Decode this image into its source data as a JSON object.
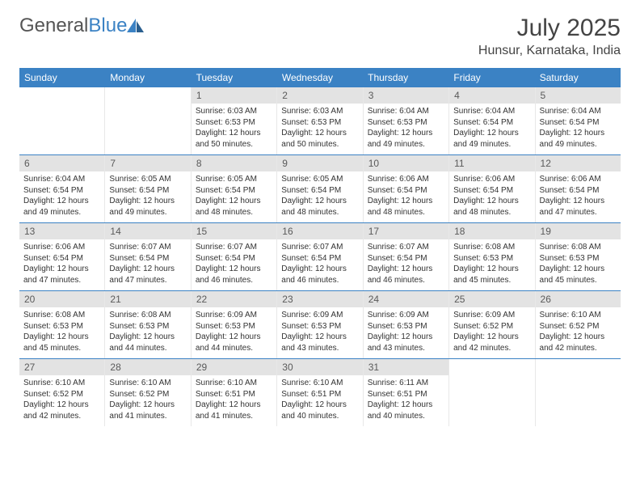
{
  "logo": {
    "text1": "General",
    "text2": "Blue"
  },
  "title": "July 2025",
  "location": "Hunsur, Karnataka, India",
  "colors": {
    "header_bg": "#3b82c4",
    "daynum_bg": "#e3e3e3",
    "week_border": "#3b82c4",
    "text": "#333333",
    "bg": "#ffffff"
  },
  "weekdays": [
    "Sunday",
    "Monday",
    "Tuesday",
    "Wednesday",
    "Thursday",
    "Friday",
    "Saturday"
  ],
  "weeks": [
    [
      null,
      null,
      {
        "n": "1",
        "sr": "Sunrise: 6:03 AM",
        "ss": "Sunset: 6:53 PM",
        "dl": "Daylight: 12 hours and 50 minutes."
      },
      {
        "n": "2",
        "sr": "Sunrise: 6:03 AM",
        "ss": "Sunset: 6:53 PM",
        "dl": "Daylight: 12 hours and 50 minutes."
      },
      {
        "n": "3",
        "sr": "Sunrise: 6:04 AM",
        "ss": "Sunset: 6:53 PM",
        "dl": "Daylight: 12 hours and 49 minutes."
      },
      {
        "n": "4",
        "sr": "Sunrise: 6:04 AM",
        "ss": "Sunset: 6:54 PM",
        "dl": "Daylight: 12 hours and 49 minutes."
      },
      {
        "n": "5",
        "sr": "Sunrise: 6:04 AM",
        "ss": "Sunset: 6:54 PM",
        "dl": "Daylight: 12 hours and 49 minutes."
      }
    ],
    [
      {
        "n": "6",
        "sr": "Sunrise: 6:04 AM",
        "ss": "Sunset: 6:54 PM",
        "dl": "Daylight: 12 hours and 49 minutes."
      },
      {
        "n": "7",
        "sr": "Sunrise: 6:05 AM",
        "ss": "Sunset: 6:54 PM",
        "dl": "Daylight: 12 hours and 49 minutes."
      },
      {
        "n": "8",
        "sr": "Sunrise: 6:05 AM",
        "ss": "Sunset: 6:54 PM",
        "dl": "Daylight: 12 hours and 48 minutes."
      },
      {
        "n": "9",
        "sr": "Sunrise: 6:05 AM",
        "ss": "Sunset: 6:54 PM",
        "dl": "Daylight: 12 hours and 48 minutes."
      },
      {
        "n": "10",
        "sr": "Sunrise: 6:06 AM",
        "ss": "Sunset: 6:54 PM",
        "dl": "Daylight: 12 hours and 48 minutes."
      },
      {
        "n": "11",
        "sr": "Sunrise: 6:06 AM",
        "ss": "Sunset: 6:54 PM",
        "dl": "Daylight: 12 hours and 48 minutes."
      },
      {
        "n": "12",
        "sr": "Sunrise: 6:06 AM",
        "ss": "Sunset: 6:54 PM",
        "dl": "Daylight: 12 hours and 47 minutes."
      }
    ],
    [
      {
        "n": "13",
        "sr": "Sunrise: 6:06 AM",
        "ss": "Sunset: 6:54 PM",
        "dl": "Daylight: 12 hours and 47 minutes."
      },
      {
        "n": "14",
        "sr": "Sunrise: 6:07 AM",
        "ss": "Sunset: 6:54 PM",
        "dl": "Daylight: 12 hours and 47 minutes."
      },
      {
        "n": "15",
        "sr": "Sunrise: 6:07 AM",
        "ss": "Sunset: 6:54 PM",
        "dl": "Daylight: 12 hours and 46 minutes."
      },
      {
        "n": "16",
        "sr": "Sunrise: 6:07 AM",
        "ss": "Sunset: 6:54 PM",
        "dl": "Daylight: 12 hours and 46 minutes."
      },
      {
        "n": "17",
        "sr": "Sunrise: 6:07 AM",
        "ss": "Sunset: 6:54 PM",
        "dl": "Daylight: 12 hours and 46 minutes."
      },
      {
        "n": "18",
        "sr": "Sunrise: 6:08 AM",
        "ss": "Sunset: 6:53 PM",
        "dl": "Daylight: 12 hours and 45 minutes."
      },
      {
        "n": "19",
        "sr": "Sunrise: 6:08 AM",
        "ss": "Sunset: 6:53 PM",
        "dl": "Daylight: 12 hours and 45 minutes."
      }
    ],
    [
      {
        "n": "20",
        "sr": "Sunrise: 6:08 AM",
        "ss": "Sunset: 6:53 PM",
        "dl": "Daylight: 12 hours and 45 minutes."
      },
      {
        "n": "21",
        "sr": "Sunrise: 6:08 AM",
        "ss": "Sunset: 6:53 PM",
        "dl": "Daylight: 12 hours and 44 minutes."
      },
      {
        "n": "22",
        "sr": "Sunrise: 6:09 AM",
        "ss": "Sunset: 6:53 PM",
        "dl": "Daylight: 12 hours and 44 minutes."
      },
      {
        "n": "23",
        "sr": "Sunrise: 6:09 AM",
        "ss": "Sunset: 6:53 PM",
        "dl": "Daylight: 12 hours and 43 minutes."
      },
      {
        "n": "24",
        "sr": "Sunrise: 6:09 AM",
        "ss": "Sunset: 6:53 PM",
        "dl": "Daylight: 12 hours and 43 minutes."
      },
      {
        "n": "25",
        "sr": "Sunrise: 6:09 AM",
        "ss": "Sunset: 6:52 PM",
        "dl": "Daylight: 12 hours and 42 minutes."
      },
      {
        "n": "26",
        "sr": "Sunrise: 6:10 AM",
        "ss": "Sunset: 6:52 PM",
        "dl": "Daylight: 12 hours and 42 minutes."
      }
    ],
    [
      {
        "n": "27",
        "sr": "Sunrise: 6:10 AM",
        "ss": "Sunset: 6:52 PM",
        "dl": "Daylight: 12 hours and 42 minutes."
      },
      {
        "n": "28",
        "sr": "Sunrise: 6:10 AM",
        "ss": "Sunset: 6:52 PM",
        "dl": "Daylight: 12 hours and 41 minutes."
      },
      {
        "n": "29",
        "sr": "Sunrise: 6:10 AM",
        "ss": "Sunset: 6:51 PM",
        "dl": "Daylight: 12 hours and 41 minutes."
      },
      {
        "n": "30",
        "sr": "Sunrise: 6:10 AM",
        "ss": "Sunset: 6:51 PM",
        "dl": "Daylight: 12 hours and 40 minutes."
      },
      {
        "n": "31",
        "sr": "Sunrise: 6:11 AM",
        "ss": "Sunset: 6:51 PM",
        "dl": "Daylight: 12 hours and 40 minutes."
      },
      null,
      null
    ]
  ]
}
